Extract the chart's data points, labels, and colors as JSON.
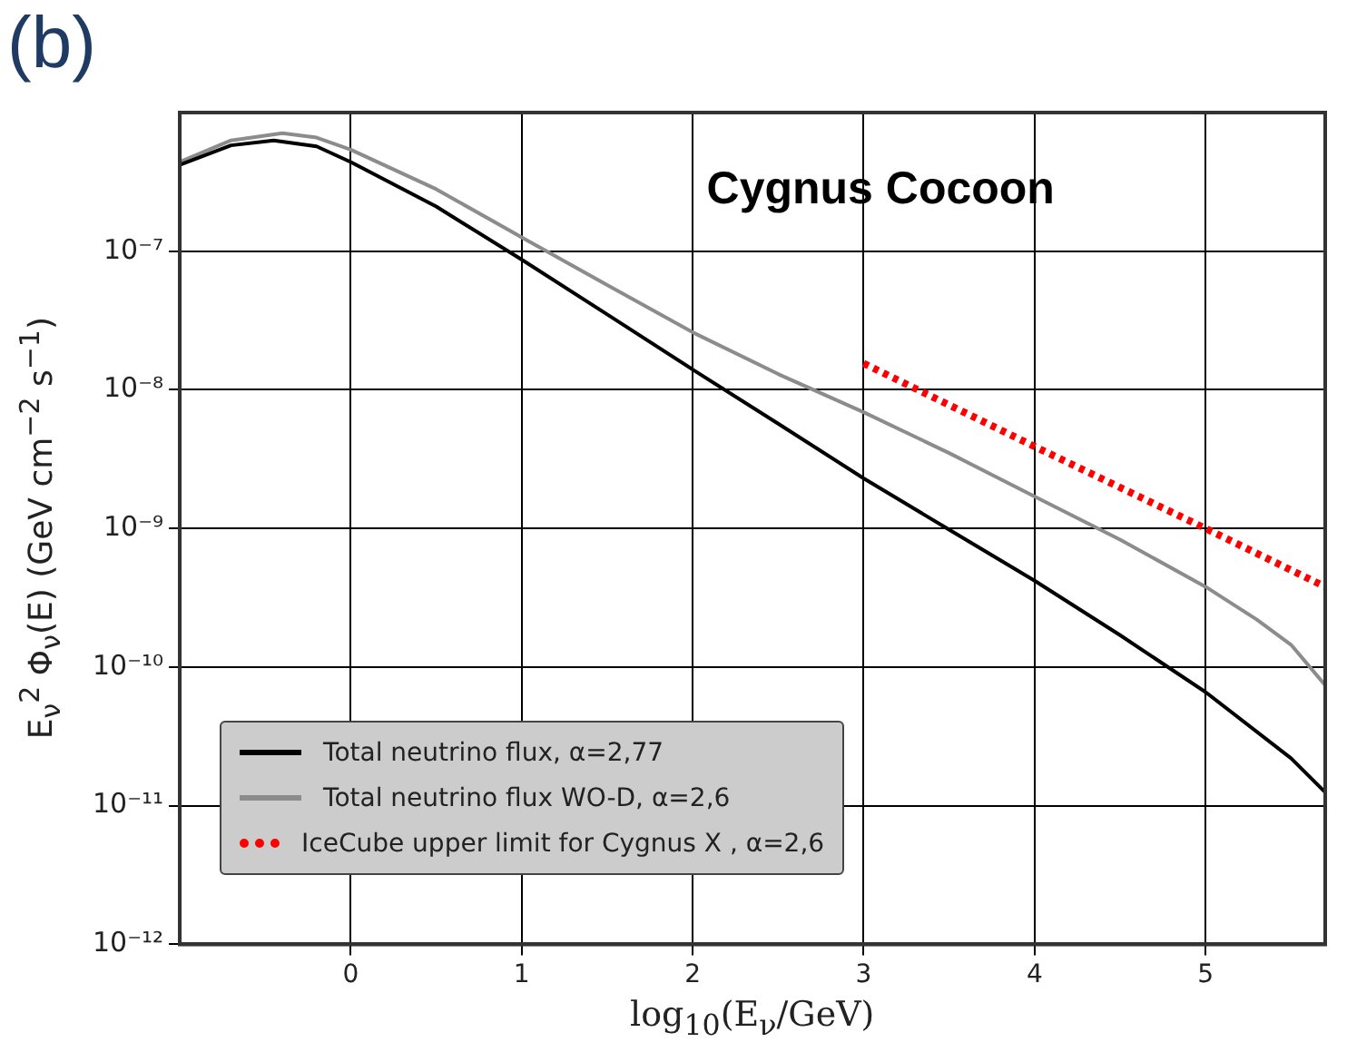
{
  "chart_data": {
    "type": "line",
    "title": "Cygnus Cocoon",
    "annotations": [
      "(b)"
    ],
    "xlabel": "log$_{10}$(E$_{ν}$/GeV)",
    "ylabel": "E$_{ν}$$^{2}$ Φ$_{ν}$(E) (GeV cm$^{−2}$ s$^{−1}$)",
    "log": "y",
    "grid": true,
    "legend": "bottom left",
    "marker": "none",
    "xlim": [
      -1,
      5.7
    ],
    "xticks": [
      0,
      1,
      2,
      3,
      4,
      5
    ],
    "ylim": [
      1e-12,
      1e-06
    ],
    "yticks": [
      {
        "value": 1e-12,
        "label": "10⁻¹²"
      },
      {
        "value": 1e-11,
        "label": "10⁻¹¹"
      },
      {
        "value": 1e-10,
        "label": "10⁻¹⁰"
      },
      {
        "value": 1e-09,
        "label": "10⁻⁹"
      },
      {
        "value": 1e-08,
        "label": "10⁻⁸"
      },
      {
        "value": 1e-07,
        "label": "10⁻⁷"
      }
    ],
    "series": [
      {
        "name": "Total neutrino flux, α=2,77",
        "color": "#000000",
        "line_style": "solid",
        "x": [
          -1,
          -0.7,
          -0.45,
          -0.2,
          0,
          0.5,
          1,
          1.5,
          2,
          2.5,
          3,
          3.5,
          4,
          4.5,
          5,
          5.5,
          5.7
        ],
        "values": [
          4.2e-07,
          5.8e-07,
          6.3e-07,
          5.7e-07,
          4.4e-07,
          2.1e-07,
          8.7e-08,
          3.5e-08,
          1.4e-08,
          5.7e-09,
          2.3e-09,
          9.8e-10,
          4.2e-10,
          1.7e-10,
          6.6e-11,
          2.2e-11,
          1.25e-11
        ]
      },
      {
        "name": "Total neutrino flux WO-D, α=2,6",
        "color": "#8c8c8c",
        "line_style": "solid",
        "x": [
          -1,
          -0.7,
          -0.4,
          -0.2,
          0,
          0.5,
          1,
          1.5,
          2,
          2.5,
          3,
          3.5,
          4,
          4.5,
          5,
          5.3,
          5.5,
          5.7
        ],
        "values": [
          4.4e-07,
          6.3e-07,
          7.1e-07,
          6.6e-07,
          5.4e-07,
          2.8e-07,
          1.26e-07,
          5.7e-08,
          2.6e-08,
          1.3e-08,
          6.9e-09,
          3.5e-09,
          1.7e-09,
          8.3e-10,
          3.8e-10,
          2.2e-10,
          1.45e-10,
          7.4e-11
        ]
      },
      {
        "name": "IceCube upper limit for Cygnus X , α=2,6",
        "color": "#ff0000",
        "line_style": "dotted",
        "x": [
          3,
          4,
          5,
          5.7
        ],
        "values": [
          1.55e-08,
          3.9e-09,
          1e-09,
          3.8e-10
        ]
      }
    ]
  }
}
